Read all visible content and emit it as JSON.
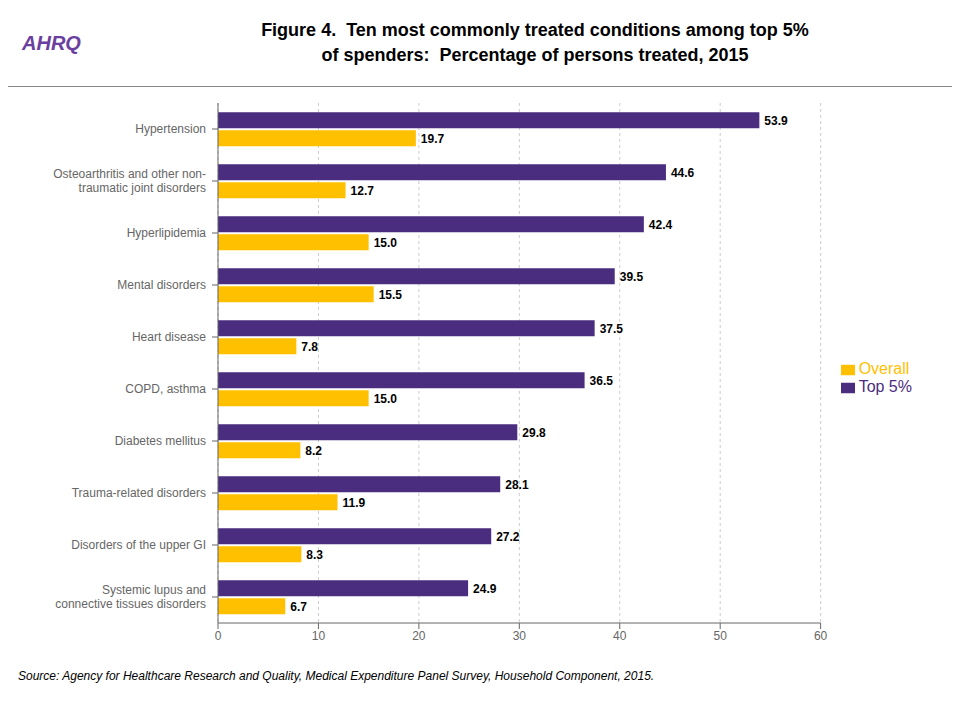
{
  "chart_data": {
    "type": "bar",
    "orientation": "horizontal",
    "title": "Figure 4.  Ten most commonly treated conditions among top 5%\nof spenders:  Percentage of persons treated, 2015",
    "categories": [
      "Hypertension",
      "Osteoarthritis and other non-\ntraumatic joint disorders",
      "Hyperlipidemia",
      "Mental disorders",
      "Heart disease",
      "COPD, asthma",
      "Diabetes mellitus",
      "Trauma-related disorders",
      "Disorders of the upper GI",
      "Systemic lupus and\nconnective tissues disorders"
    ],
    "series": [
      {
        "name": "Top 5%",
        "color": "#4B2D80",
        "values": [
          53.9,
          44.6,
          42.4,
          39.5,
          37.5,
          36.5,
          29.8,
          28.1,
          27.2,
          24.9
        ],
        "value_labels": [
          "53.9",
          "44.6",
          "42.4",
          "39.5",
          "37.5",
          "36.5",
          "29.8",
          "28.1",
          "27.2",
          "24.9"
        ]
      },
      {
        "name": "Overall",
        "color": "#FFC000",
        "values": [
          19.7,
          12.7,
          15.0,
          15.5,
          7.8,
          15.0,
          8.2,
          11.9,
          8.3,
          6.7
        ],
        "value_labels": [
          "19.7",
          "12.7",
          "15.0",
          "15.5",
          "7.8",
          "15.0",
          "8.2",
          "11.9",
          "8.3",
          "6.7"
        ]
      }
    ],
    "xlim": [
      0,
      60
    ],
    "xticks": [
      0,
      10,
      20,
      30,
      40,
      50,
      60
    ],
    "grid": true,
    "legend": "right",
    "data_labels": true,
    "annotations": [
      "AHRQ",
      "Source: Agency for Healthcare Research and Quality, Medical Expenditure Panel Survey, Household Component, 2015."
    ]
  }
}
